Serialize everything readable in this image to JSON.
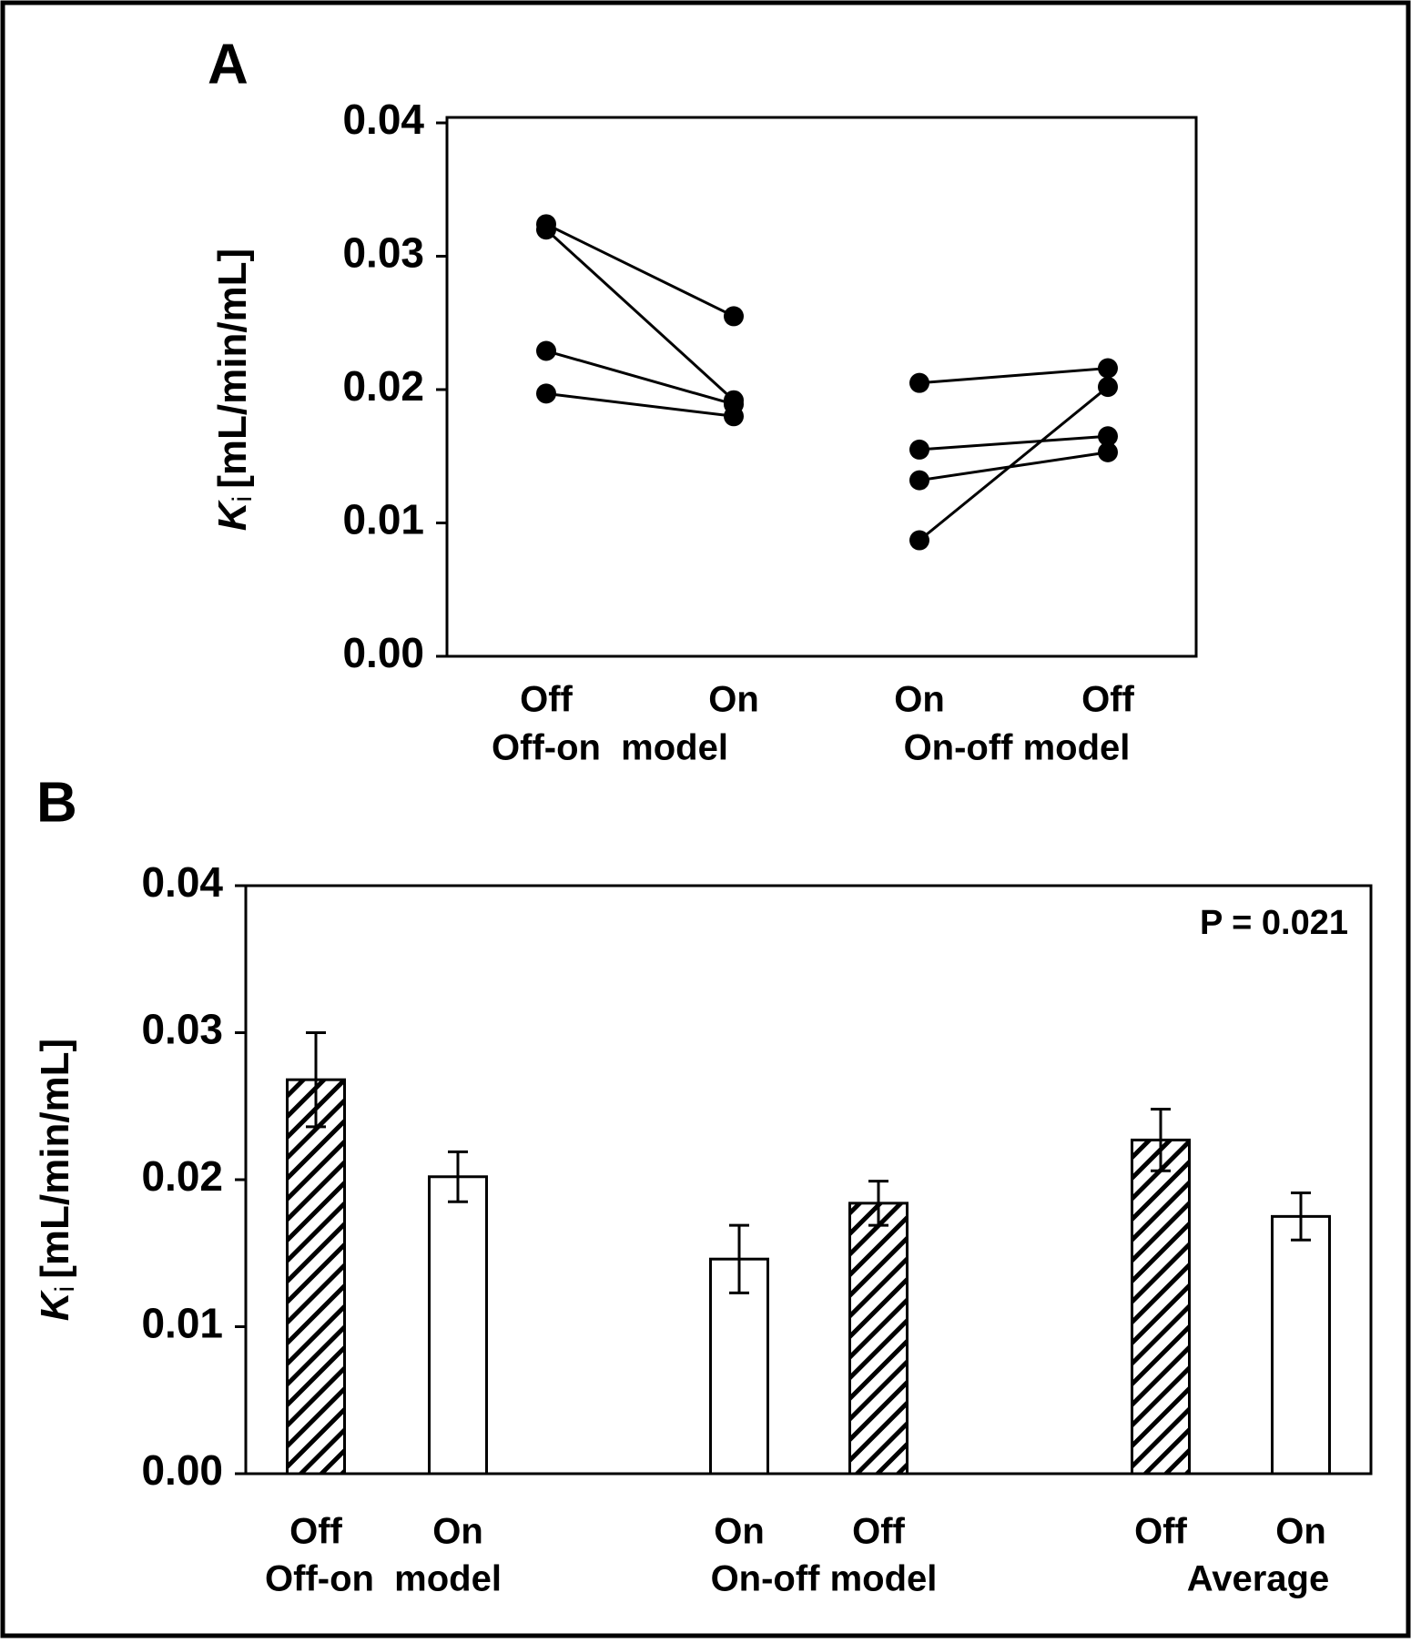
{
  "chart_data": [
    {
      "type": "line",
      "panel": "A",
      "ylabel": "K",
      "ylabel_sub": "i",
      "ylabel_unit": "[mL/min/mL]",
      "categories": [
        "Off",
        "On",
        "On",
        "Off"
      ],
      "groups": [
        "Off-on  model",
        "On-off model"
      ],
      "color": "#000000",
      "series": [
        {
          "values": [
            0.0324,
            0.0255,
            null,
            null
          ]
        },
        {
          "values": [
            0.032,
            0.0192,
            null,
            null
          ]
        },
        {
          "values": [
            0.0229,
            0.0189,
            null,
            null
          ]
        },
        {
          "values": [
            0.0197,
            0.018,
            null,
            null
          ]
        },
        {
          "values": [
            null,
            null,
            0.0205,
            0.0216
          ]
        },
        {
          "values": [
            null,
            null,
            0.0155,
            0.0165
          ]
        },
        {
          "values": [
            null,
            null,
            0.0132,
            0.0153
          ]
        },
        {
          "values": [
            null,
            null,
            0.0087,
            0.0202
          ]
        }
      ],
      "ylim": [
        0,
        0.04
      ],
      "yticks": [
        {
          "value": 0,
          "label": "0.00"
        },
        0.01,
        0.02,
        0.03,
        0.04
      ]
    },
    {
      "type": "bar",
      "panel": "B",
      "ylabel": "K",
      "ylabel_sub": "i",
      "ylabel_unit": "[mL/min/mL]",
      "annotation": "P = 0.021",
      "categories": [
        "Off",
        "On",
        "On",
        "Off",
        "Off",
        "On"
      ],
      "groups": [
        "Off-on  model",
        "On-off model",
        "Average"
      ],
      "values": [
        0.0268,
        0.0202,
        0.0146,
        0.0184,
        0.0227,
        0.0175
      ],
      "errors": [
        0.0032,
        0.0017,
        0.0023,
        0.0015,
        0.0021,
        0.0016
      ],
      "hatched": [
        true,
        false,
        false,
        true,
        true,
        false
      ],
      "ylim": [
        0,
        0.04
      ],
      "yticks": [
        {
          "value": 0,
          "label": "0.00"
        },
        0.01,
        0.02,
        0.03,
        0.04
      ]
    }
  ]
}
